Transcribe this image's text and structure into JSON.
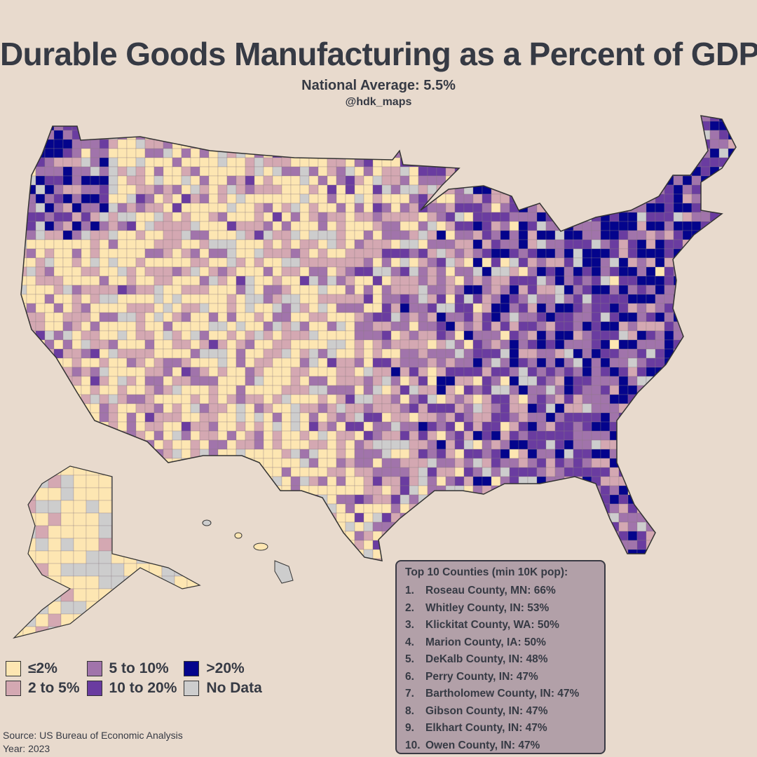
{
  "title": "Durable Goods Manufacturing as a Percent of GDP",
  "subtitle": "National Average: 5.5%",
  "handle": "@hdk_maps",
  "legend": [
    {
      "label": "≤2%",
      "color": "#fde6b2"
    },
    {
      "label": "5 to 10%",
      "color": "#a174ab"
    },
    {
      "label": ">20%",
      "color": "#04048c"
    },
    {
      "label": "2 to 5%",
      "color": "#d4a8b2"
    },
    {
      "label": "10 to 20%",
      "color": "#6a3ca0"
    },
    {
      "label": "No Data",
      "color": "#cdcdcd"
    }
  ],
  "source": "Source: US Bureau of Economic Analysis",
  "year": "Year: 2023",
  "top10": {
    "heading": "Top 10 Counties (min 10K pop):",
    "items": [
      {
        "rank": "1.",
        "text": "Roseau County, MN: 66%"
      },
      {
        "rank": "2.",
        "text": "Whitley County, IN: 53%"
      },
      {
        "rank": "3.",
        "text": "Klickitat County, WA: 50%"
      },
      {
        "rank": "4.",
        "text": "Marion County, IA: 50%"
      },
      {
        "rank": "5.",
        "text": "DeKalb County, IN: 48%"
      },
      {
        "rank": "6.",
        "text": "Perry County, IN: 47%"
      },
      {
        "rank": "7.",
        "text": "Bartholomew County, IN: 47%"
      },
      {
        "rank": "8.",
        "text": "Gibson County, IN: 47%"
      },
      {
        "rank": "9.",
        "text": "Elkhart County, IN: 47%"
      },
      {
        "rank": "10.",
        "text": "Owen County, IN: 47%"
      }
    ]
  }
}
